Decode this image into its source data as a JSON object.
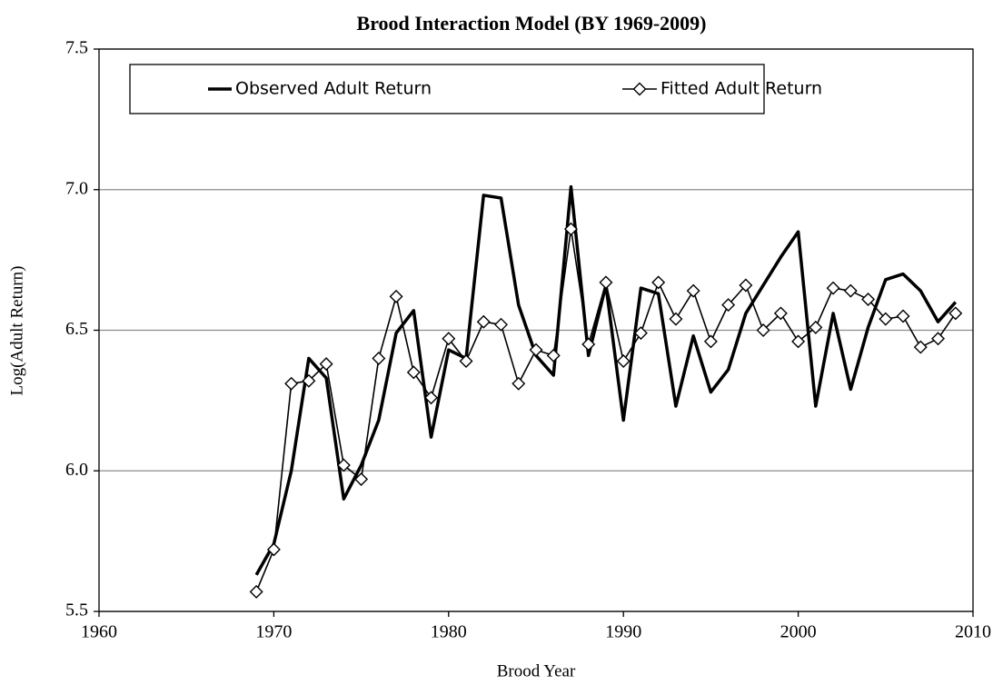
{
  "chart_data": {
    "type": "line",
    "title": "Brood Interaction Model (BY 1969-2009)",
    "x_label": "Brood Year",
    "y_label": "Log(Adult Return)",
    "x": [
      1969,
      1970,
      1971,
      1972,
      1973,
      1974,
      1975,
      1976,
      1977,
      1978,
      1979,
      1980,
      1981,
      1982,
      1983,
      1984,
      1985,
      1986,
      1987,
      1988,
      1989,
      1990,
      1991,
      1992,
      1993,
      1994,
      1995,
      1996,
      1997,
      1998,
      1999,
      2000,
      2001,
      2002,
      2003,
      2004,
      2005,
      2006,
      2007,
      2008,
      2009
    ],
    "series": [
      {
        "name": "Observed Adult Return",
        "color": "#000000",
        "marker": "none",
        "values": [
          5.63,
          5.74,
          6.0,
          6.4,
          6.33,
          5.9,
          6.02,
          6.18,
          6.49,
          6.57,
          6.12,
          6.43,
          6.4,
          6.98,
          6.97,
          6.59,
          6.41,
          6.34,
          7.01,
          6.41,
          6.66,
          6.18,
          6.65,
          6.63,
          6.23,
          6.48,
          6.28,
          6.36,
          6.56,
          6.66,
          6.76,
          6.85,
          6.23,
          6.56,
          6.29,
          6.51,
          6.68,
          6.7,
          6.64,
          6.53,
          6.6
        ]
      },
      {
        "name": "Fitted Adult Return",
        "color": "#000000",
        "marker": "diamond",
        "values": [
          5.57,
          5.72,
          6.31,
          6.32,
          6.38,
          6.02,
          5.97,
          6.4,
          6.62,
          6.35,
          6.26,
          6.47,
          6.39,
          6.53,
          6.52,
          6.31,
          6.43,
          6.41,
          6.86,
          6.45,
          6.67,
          6.39,
          6.49,
          6.67,
          6.54,
          6.64,
          6.46,
          6.59,
          6.66,
          6.5,
          6.56,
          6.46,
          6.51,
          6.65,
          6.64,
          6.61,
          6.54,
          6.55,
          6.44,
          6.47,
          6.56
        ]
      }
    ],
    "xlim": [
      1960,
      2010
    ],
    "xticks": [
      1960,
      1970,
      1980,
      1990,
      2000,
      2010
    ],
    "ylim": [
      5.5,
      7.5
    ],
    "yticks": [
      {
        "value": 5.5,
        "label": "5.5"
      },
      {
        "value": 6.0,
        "label": "6.0"
      },
      {
        "value": 6.5,
        "label": "6.5"
      },
      {
        "value": 7.0,
        "label": "7.0"
      },
      {
        "value": 7.5,
        "label": "7.5"
      }
    ],
    "grid": true,
    "legend": "top"
  }
}
